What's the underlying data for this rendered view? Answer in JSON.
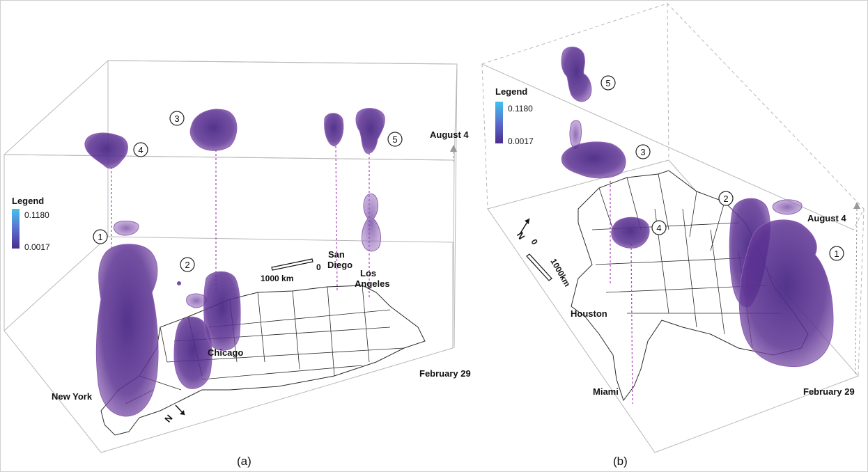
{
  "panel_a": {
    "caption": "(a)",
    "legend": {
      "title": "Legend",
      "max": "0.1180",
      "min": "0.0017",
      "color_max": "#41c3ea",
      "color_min": "#4b2c8c"
    },
    "date_top": "August 4",
    "date_bottom": "February 29",
    "scale_zero": "0",
    "scale_label": "1000 km",
    "north": "N",
    "cities": {
      "new_york": "New York",
      "chicago": "Chicago",
      "san_diego_1": "San",
      "san_diego_2": "Diego",
      "los_angeles_1": "Los",
      "los_angeles_2": "Angeles"
    },
    "cluster_ids": [
      "1",
      "2",
      "3",
      "4",
      "5"
    ]
  },
  "panel_b": {
    "caption": "(b)",
    "legend": {
      "title": "Legend",
      "max": "0.1180",
      "min": "0.0017",
      "color_max": "#41c3ea",
      "color_min": "#4b2c8c"
    },
    "date_top": "August 4",
    "date_bottom": "February 29",
    "scale_zero": "0",
    "scale_label": "1000km",
    "north": "N",
    "cities": {
      "houston": "Houston",
      "miami": "Miami"
    },
    "cluster_ids": [
      "1",
      "2",
      "3",
      "4",
      "5"
    ]
  },
  "colors": {
    "cluster_fill": "#5a2e8a",
    "cluster_edge": "#8e5fb4",
    "dropline": "#b44bc6"
  }
}
